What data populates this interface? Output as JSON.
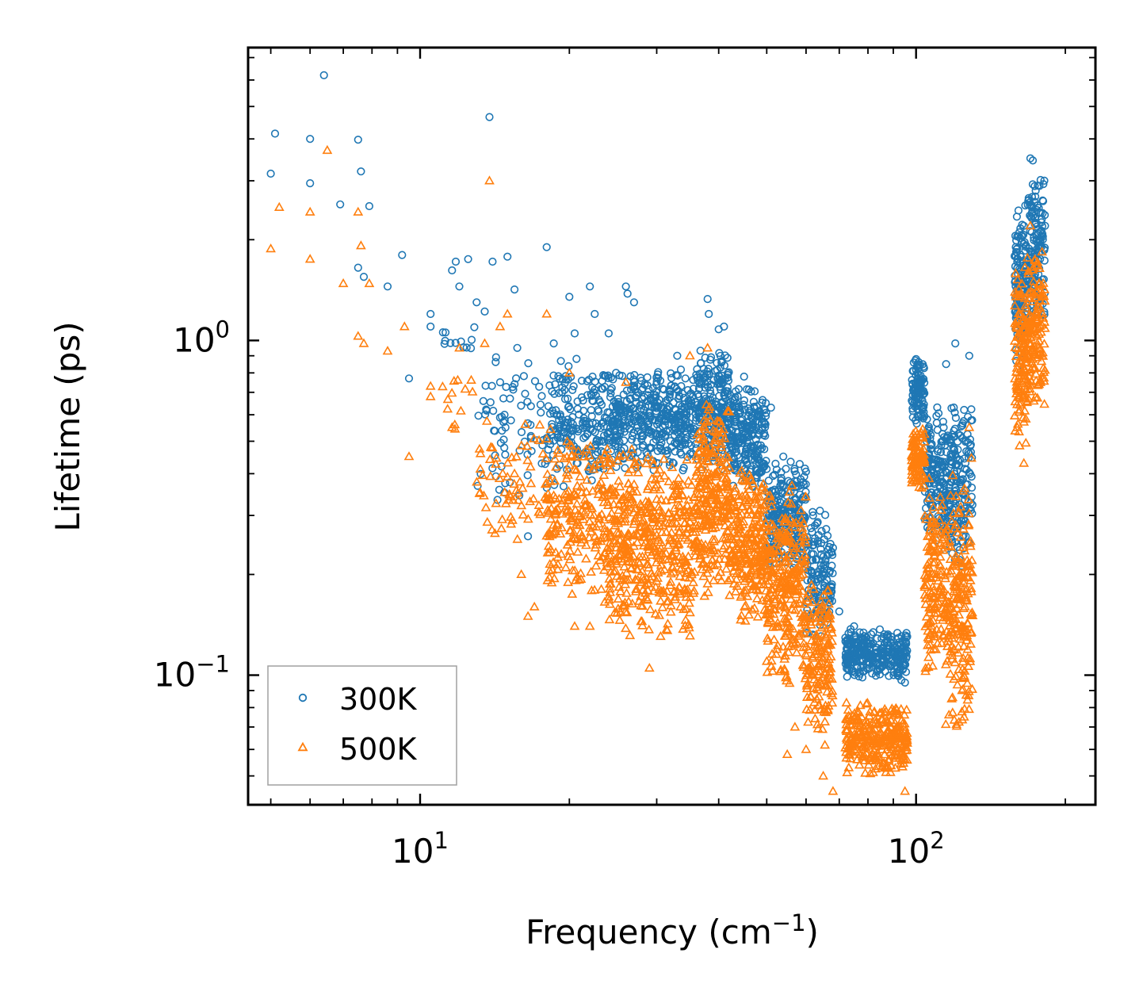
{
  "chart_data": {
    "type": "scatter",
    "xscale": "log",
    "yscale": "log",
    "xlabel": "Frequency (cm",
    "xlabel_sup": "−1",
    "xlabel_tail": ")",
    "ylabel": "Lifetime (ps)",
    "xlim": [
      4.5,
      230
    ],
    "ylim": [
      0.041,
      7.5
    ],
    "xticks": [
      {
        "value": 10,
        "base": "10",
        "exp": "1"
      },
      {
        "value": 100,
        "base": "10",
        "exp": "2"
      }
    ],
    "yticks": [
      {
        "value": 0.1,
        "base": "10",
        "exp": "−1"
      },
      {
        "value": 1,
        "base": "10",
        "exp": "0"
      }
    ],
    "legend_position": "lower-left",
    "series": [
      {
        "name": "300K",
        "marker": "circle",
        "color": "#1f77b4",
        "points": [
          [
            5.0,
            3.15
          ],
          [
            5.1,
            4.15
          ],
          [
            6.0,
            4.0
          ],
          [
            6.0,
            2.95
          ],
          [
            6.4,
            6.2
          ],
          [
            6.9,
            2.55
          ],
          [
            7.5,
            3.98
          ],
          [
            7.6,
            3.2
          ],
          [
            7.9,
            2.52
          ],
          [
            7.5,
            1.65
          ],
          [
            7.7,
            1.55
          ],
          [
            8.6,
            1.45
          ],
          [
            9.2,
            1.8
          ],
          [
            9.5,
            0.77
          ],
          [
            10.5,
            1.2
          ],
          [
            10.5,
            1.1
          ],
          [
            11.6,
            1.62
          ],
          [
            11.8,
            1.72
          ],
          [
            12.0,
            1.45
          ],
          [
            12.5,
            1.75
          ],
          [
            13.0,
            1.3
          ],
          [
            13.5,
            1.22
          ],
          [
            13.8,
            4.65
          ],
          [
            14.0,
            1.72
          ],
          [
            14.5,
            0.75
          ],
          [
            14.8,
            0.6
          ],
          [
            15.0,
            1.78
          ],
          [
            15.5,
            1.42
          ],
          [
            15.7,
            0.95
          ],
          [
            16.5,
            0.26
          ],
          [
            18.0,
            1.9
          ],
          [
            18.6,
            0.98
          ],
          [
            20.0,
            1.35
          ],
          [
            20.5,
            1.05
          ],
          [
            22.0,
            1.45
          ],
          [
            22.5,
            1.2
          ],
          [
            24.0,
            1.05
          ],
          [
            26.0,
            1.45
          ],
          [
            26.2,
            1.38
          ],
          [
            27.0,
            1.3
          ],
          [
            33.0,
            0.9
          ],
          [
            38.0,
            1.33
          ],
          [
            38.2,
            1.2
          ],
          [
            40.0,
            1.08
          ],
          [
            41.0,
            1.1
          ],
          [
            45.0,
            0.78
          ],
          [
            51.0,
            0.63
          ],
          [
            54.0,
            0.45
          ],
          [
            57.0,
            0.38
          ],
          [
            62.0,
            0.3
          ],
          [
            64.0,
            0.31
          ],
          [
            68.0,
            0.24
          ],
          [
            70.0,
            0.155
          ],
          [
            75.0,
            0.14
          ],
          [
            80.0,
            0.11
          ],
          [
            88.0,
            0.12
          ],
          [
            95.0,
            0.095
          ],
          [
            100.0,
            0.88
          ],
          [
            101.0,
            0.85
          ],
          [
            105.0,
            0.53
          ],
          [
            110.0,
            0.35
          ],
          [
            115.0,
            0.85
          ],
          [
            120.0,
            0.98
          ],
          [
            125.0,
            0.62
          ],
          [
            128.0,
            0.9
          ],
          [
            160.0,
            1.72
          ],
          [
            165.0,
            2.2
          ],
          [
            170.0,
            3.5
          ],
          [
            172.0,
            3.45
          ],
          [
            176.0,
            2.9
          ],
          [
            180.0,
            2.4
          ],
          [
            182.0,
            2.2
          ]
        ],
        "bands": [
          {
            "x": [
              11,
              13
            ],
            "y": [
              0.85,
              1.15
            ],
            "n": 12
          },
          {
            "x": [
              13,
              18
            ],
            "y": [
              0.3,
              1.0
            ],
            "n": 70
          },
          {
            "x": [
              18,
              24
            ],
            "y": [
              0.35,
              0.9
            ],
            "n": 200
          },
          {
            "x": [
              24,
              36
            ],
            "y": [
              0.4,
              0.85
            ],
            "n": 420
          },
          {
            "x": [
              36,
              42
            ],
            "y": [
              0.4,
              0.95
            ],
            "n": 220
          },
          {
            "x": [
              42,
              50
            ],
            "y": [
              0.35,
              0.75
            ],
            "n": 240
          },
          {
            "x": [
              50,
              60
            ],
            "y": [
              0.2,
              0.45
            ],
            "n": 240
          },
          {
            "x": [
              60,
              68
            ],
            "y": [
              0.12,
              0.33
            ],
            "n": 140
          },
          {
            "x": [
              72,
              96
            ],
            "y": [
              0.095,
              0.14
            ],
            "n": 320
          },
          {
            "x": [
              98,
              104
            ],
            "y": [
              0.55,
              0.88
            ],
            "n": 110
          },
          {
            "x": [
              104,
              114
            ],
            "y": [
              0.25,
              0.65
            ],
            "n": 140
          },
          {
            "x": [
              114,
              130
            ],
            "y": [
              0.2,
              0.7
            ],
            "n": 200
          },
          {
            "x": [
              158,
              168
            ],
            "y": [
              0.8,
              2.6
            ],
            "n": 130
          },
          {
            "x": [
              168,
              182
            ],
            "y": [
              1.0,
              3.3
            ],
            "n": 130
          }
        ]
      },
      {
        "name": "500K",
        "marker": "triangle",
        "color": "#ff7f0e",
        "points": [
          [
            5.0,
            1.88
          ],
          [
            5.2,
            2.5
          ],
          [
            6.0,
            2.42
          ],
          [
            6.0,
            1.75
          ],
          [
            6.5,
            3.7
          ],
          [
            7.0,
            1.48
          ],
          [
            7.5,
            2.42
          ],
          [
            7.6,
            1.92
          ],
          [
            7.9,
            1.48
          ],
          [
            7.5,
            1.03
          ],
          [
            7.7,
            0.98
          ],
          [
            8.6,
            0.93
          ],
          [
            9.3,
            1.1
          ],
          [
            9.5,
            0.45
          ],
          [
            10.5,
            0.73
          ],
          [
            10.5,
            0.68
          ],
          [
            11.6,
            0.55
          ],
          [
            12.0,
            0.95
          ],
          [
            13.5,
            0.98
          ],
          [
            13.8,
            3.0
          ],
          [
            14.5,
            1.1
          ],
          [
            15.0,
            1.2
          ],
          [
            15.5,
            0.4
          ],
          [
            16.0,
            0.2
          ],
          [
            16.5,
            0.15
          ],
          [
            17.0,
            0.16
          ],
          [
            18.0,
            1.2
          ],
          [
            20.0,
            0.8
          ],
          [
            20.5,
            0.14
          ],
          [
            22.0,
            0.14
          ],
          [
            26.0,
            0.75
          ],
          [
            29.0,
            0.105
          ],
          [
            35.0,
            0.9
          ],
          [
            38.0,
            0.95
          ],
          [
            50.0,
            0.11
          ],
          [
            55.0,
            0.058
          ],
          [
            57.0,
            0.07
          ],
          [
            60.0,
            0.06
          ],
          [
            65.0,
            0.05
          ],
          [
            68.0,
            0.045
          ],
          [
            75.0,
            0.06
          ],
          [
            80.0,
            0.072
          ],
          [
            88.0,
            0.065
          ],
          [
            95.0,
            0.045
          ],
          [
            100.0,
            0.5
          ],
          [
            102.0,
            0.45
          ],
          [
            110.0,
            0.2
          ],
          [
            118.0,
            0.085
          ],
          [
            125.0,
            0.075
          ],
          [
            128.0,
            0.55
          ],
          [
            160.0,
            0.55
          ],
          [
            165.0,
            0.43
          ],
          [
            170.0,
            2.2
          ],
          [
            175.0,
            1.4
          ],
          [
            180.0,
            1.35
          ]
        ],
        "bands": [
          {
            "x": [
              11,
              13
            ],
            "y": [
              0.5,
              0.8
            ],
            "n": 12
          },
          {
            "x": [
              13,
              18
            ],
            "y": [
              0.25,
              0.6
            ],
            "n": 70
          },
          {
            "x": [
              18,
              24
            ],
            "y": [
              0.16,
              0.55
            ],
            "n": 220
          },
          {
            "x": [
              24,
              36
            ],
            "y": [
              0.12,
              0.5
            ],
            "n": 480
          },
          {
            "x": [
              36,
              42
            ],
            "y": [
              0.16,
              0.7
            ],
            "n": 260
          },
          {
            "x": [
              42,
              50
            ],
            "y": [
              0.14,
              0.45
            ],
            "n": 260
          },
          {
            "x": [
              50,
              60
            ],
            "y": [
              0.09,
              0.38
            ],
            "n": 280
          },
          {
            "x": [
              60,
              68
            ],
            "y": [
              0.06,
              0.2
            ],
            "n": 160
          },
          {
            "x": [
              72,
              96
            ],
            "y": [
              0.05,
              0.085
            ],
            "n": 300
          },
          {
            "x": [
              98,
              104
            ],
            "y": [
              0.35,
              0.55
            ],
            "n": 100
          },
          {
            "x": [
              104,
              114
            ],
            "y": [
              0.09,
              0.4
            ],
            "n": 140
          },
          {
            "x": [
              114,
              130
            ],
            "y": [
              0.06,
              0.45
            ],
            "n": 220
          },
          {
            "x": [
              158,
              168
            ],
            "y": [
              0.45,
              1.8
            ],
            "n": 130
          },
          {
            "x": [
              168,
              182
            ],
            "y": [
              0.6,
              2.0
            ],
            "n": 130
          }
        ]
      }
    ]
  }
}
